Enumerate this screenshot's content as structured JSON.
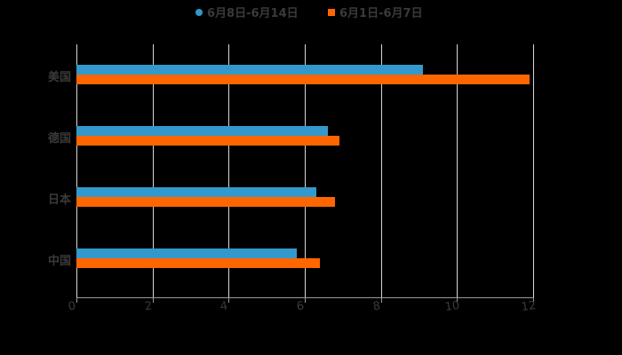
{
  "chart_data": {
    "type": "bar",
    "orientation": "horizontal",
    "title": "",
    "xlabel": "",
    "ylabel": "",
    "categories": [
      "美国",
      "德国",
      "日本",
      "中国"
    ],
    "series": [
      {
        "name": "6月8日-6月14日",
        "color": "#3399cc",
        "values": [
          9.1,
          6.6,
          6.3,
          5.8
        ]
      },
      {
        "name": "6月1日-6月7日",
        "color": "#ff6600",
        "values": [
          11.9,
          6.9,
          6.8,
          6.4
        ]
      }
    ],
    "xlim": [
      0,
      12
    ],
    "x_ticks": [
      "0",
      "2",
      "4",
      "6",
      "8",
      "10",
      "12"
    ],
    "grid": true,
    "legend_position": "top"
  },
  "legend": {
    "items": [
      {
        "label": "6月8日-6月14日",
        "color": "#3399cc",
        "shape": "circle"
      },
      {
        "label": "6月1日-6月7日",
        "color": "#ff6600",
        "shape": "square"
      }
    ]
  }
}
